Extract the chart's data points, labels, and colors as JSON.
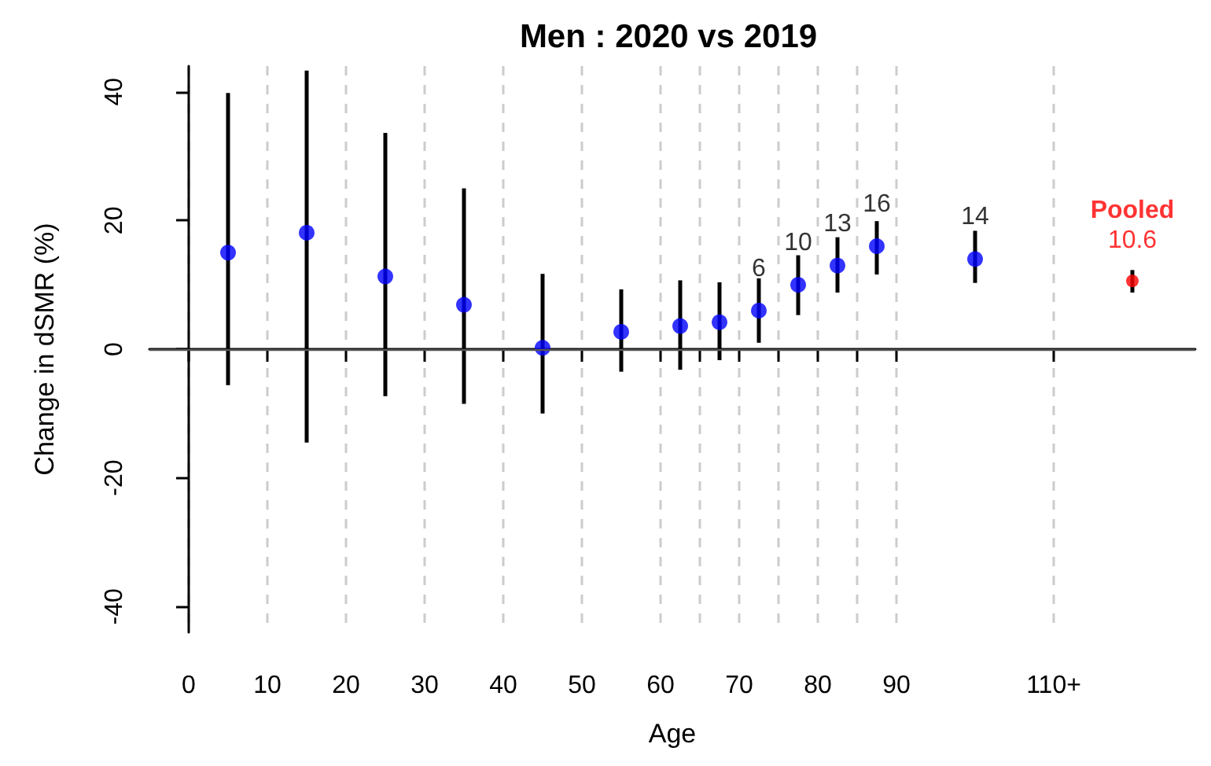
{
  "chart_data": {
    "type": "scatter",
    "title": "Men : 2020 vs 2019",
    "xlabel": "Age",
    "ylabel": "Change in dSMR (%)",
    "xlim": [
      -5,
      128
    ],
    "ylim": [
      -44,
      44
    ],
    "xticks": [
      0,
      10,
      20,
      30,
      40,
      50,
      60,
      {
        "value": 65,
        "label": null
      },
      70,
      {
        "value": 75,
        "label": null
      },
      80,
      {
        "value": 85,
        "label": null
      },
      90,
      {
        "value": 110,
        "label": "110+"
      }
    ],
    "yticks": [
      -40,
      -20,
      0,
      20,
      40
    ],
    "grid": "x",
    "marker": "circle",
    "legend": false,
    "ref_lines": [
      {
        "axis": "y",
        "value": 0,
        "color": "#555555"
      }
    ],
    "series": [
      {
        "color": "#0000ff",
        "x": [
          5,
          15,
          25,
          35,
          45,
          55,
          62.5,
          67.5,
          72.5,
          77.5,
          82.5,
          87.5,
          100
        ],
        "values": [
          15,
          18.1,
          11.3,
          6.9,
          0.2,
          2.7,
          3.6,
          4.2,
          6,
          10,
          13,
          16,
          14
        ],
        "errors": [
          [
            -5.6,
            39.8
          ],
          [
            -14.5,
            43.3
          ],
          [
            -7.3,
            33.6
          ],
          [
            -8.5,
            25
          ],
          [
            -10,
            11.7
          ],
          [
            -3.5,
            9.3
          ],
          [
            -3.2,
            10.7
          ],
          [
            -1.7,
            10.4
          ],
          [
            1,
            11
          ],
          [
            5.3,
            14.6
          ],
          [
            8.8,
            17.4
          ],
          [
            11.6,
            19.9
          ],
          [
            10.3,
            18.4
          ]
        ],
        "value_labels": [
          null,
          null,
          null,
          null,
          null,
          null,
          null,
          null,
          "6",
          "10",
          "13",
          "16",
          "14"
        ]
      },
      {
        "name": "Pooled",
        "color": "#ff0000",
        "x": [
          120
        ],
        "values": [
          10.6
        ],
        "errors": [
          [
            8.8,
            12.3
          ]
        ],
        "value_labels": [
          "10.6"
        ]
      }
    ]
  }
}
